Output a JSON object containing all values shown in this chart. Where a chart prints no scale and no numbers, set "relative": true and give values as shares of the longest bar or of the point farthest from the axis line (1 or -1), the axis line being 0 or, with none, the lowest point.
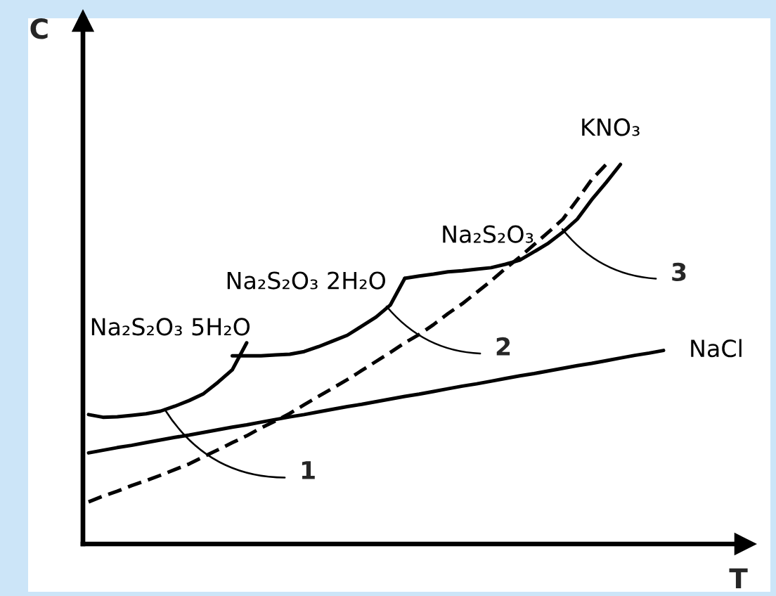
{
  "chart_data": {
    "type": "line",
    "relative": true,
    "xlabel": "T",
    "ylabel": "C",
    "line_style": "solid",
    "categories": [
      null,
      null,
      null,
      null,
      null,
      null,
      null,
      null,
      null,
      null,
      null,
      null,
      null,
      null,
      null,
      null,
      null,
      null,
      null,
      null,
      null,
      null,
      null,
      null,
      null,
      null,
      null,
      null,
      null,
      null,
      null,
      null,
      null,
      null,
      null,
      null,
      null,
      null,
      null,
      null,
      null
    ],
    "series": [
      {
        "name": "Na₂S₂O₃ 5H₂O",
        "color": "#000000",
        "values": [
          0.341,
          0.334,
          0.335,
          0.339,
          0.343,
          0.35,
          0.363,
          0.378,
          0.396,
          0.426,
          0.459,
          0.53,
          null,
          null,
          null,
          null,
          null,
          null,
          null,
          null,
          null,
          null,
          null,
          null,
          null,
          null,
          null,
          null,
          null,
          null,
          null,
          null,
          null,
          null,
          null,
          null,
          null,
          null,
          null,
          null,
          null
        ]
      },
      {
        "name": "Na₂S₂O₃ 2H₂O",
        "color": "#000000",
        "values": [
          null,
          null,
          null,
          null,
          null,
          null,
          null,
          null,
          null,
          null,
          0.496,
          0.496,
          0.496,
          0.498,
          0.5,
          0.507,
          0.52,
          0.535,
          0.55,
          0.574,
          0.598,
          0.63,
          0.7,
          null,
          null,
          null,
          null,
          null,
          null,
          null,
          null,
          null,
          null,
          null,
          null,
          null,
          null,
          null,
          null,
          null,
          null
        ]
      },
      {
        "name": "Na₂S₂O₃",
        "color": "#000000",
        "values": [
          null,
          null,
          null,
          null,
          null,
          null,
          null,
          null,
          null,
          null,
          null,
          null,
          null,
          null,
          null,
          null,
          null,
          null,
          null,
          null,
          null,
          null,
          0.7,
          0.706,
          0.711,
          0.717,
          0.72,
          0.724,
          0.728,
          0.737,
          0.748,
          0.77,
          0.793,
          0.822,
          0.856,
          0.907,
          0.952,
          1,
          null,
          null,
          null
        ]
      },
      {
        "name": "NaCl",
        "color": "#000000",
        "values": [
          0.24,
          0.247,
          0.254,
          0.26,
          0.267,
          0.274,
          0.281,
          0.287,
          0.294,
          0.301,
          0.308,
          0.314,
          0.321,
          0.328,
          0.335,
          0.341,
          0.348,
          0.355,
          0.362,
          0.368,
          0.375,
          0.382,
          0.389,
          0.395,
          0.402,
          0.409,
          0.416,
          0.422,
          0.429,
          0.436,
          0.443,
          0.449,
          0.456,
          0.463,
          0.47,
          0.476,
          0.483,
          0.49,
          0.497,
          0.503,
          0.51
        ]
      },
      {
        "name": "KNO₃",
        "color": "#000000",
        "line_style": "dashed",
        "values": [
          0.111,
          0.126,
          0.139,
          0.154,
          0.167,
          0.181,
          0.196,
          0.211,
          0.23,
          0.248,
          0.267,
          0.285,
          0.306,
          0.324,
          0.344,
          0.367,
          0.389,
          0.411,
          0.433,
          0.457,
          0.481,
          0.505,
          0.53,
          0.552,
          0.578,
          0.607,
          0.633,
          0.663,
          0.693,
          0.726,
          0.756,
          0.789,
          0.822,
          0.856,
          0.907,
          0.96,
          1,
          null,
          null,
          null,
          null
        ]
      }
    ],
    "annotations": [
      "1",
      "2",
      "3"
    ]
  }
}
